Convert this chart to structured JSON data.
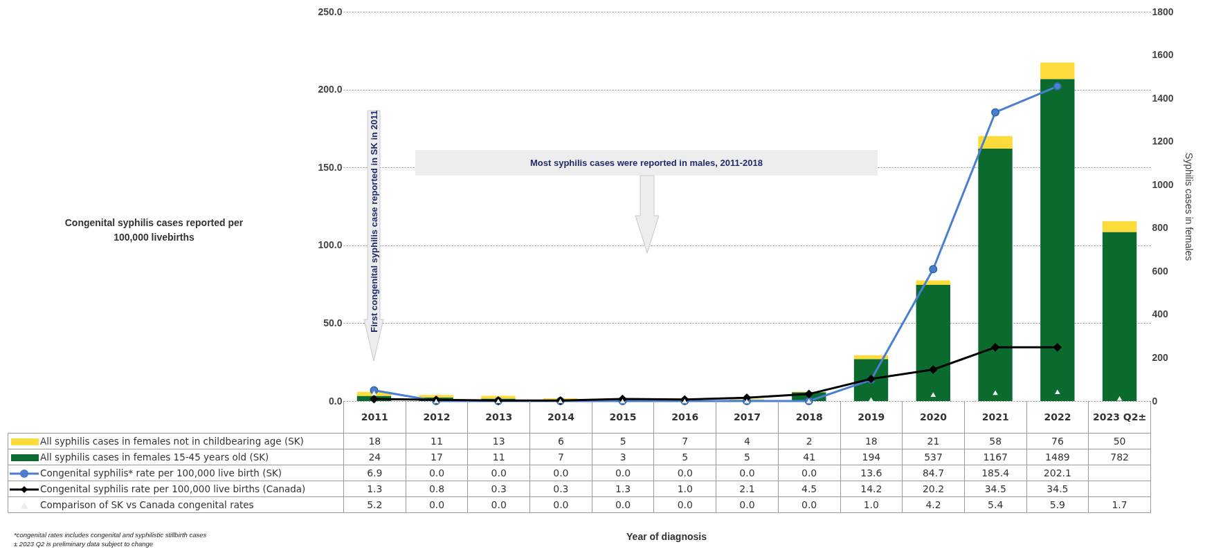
{
  "chart_data": {
    "type": "bar",
    "y2label": "Syphilis cases in females",
    "categories": [
      "2011",
      "2012",
      "2013",
      "2014",
      "2015",
      "2016",
      "2017",
      "2018",
      "2019",
      "2020",
      "2021",
      "2022",
      "2023 Q2±"
    ],
    "stacked": true,
    "data_labels": true,
    "legend": "bottom",
    "grid": "y",
    "ylim": [
      0,
      250
    ],
    "yticks": [
      {
        "value": 0,
        "label": "0.0"
      },
      {
        "value": 50,
        "label": "50.0"
      },
      {
        "value": 100,
        "label": "100.0"
      },
      {
        "value": 150,
        "label": "150.0"
      },
      {
        "value": 200,
        "label": "200.0"
      },
      {
        "value": 250,
        "label": "250.0"
      }
    ],
    "y2lim": [
      0,
      1800
    ],
    "y2ticks": [
      0,
      200,
      400,
      600,
      800,
      1000,
      1200,
      1400,
      1600,
      1800
    ],
    "series": [
      {
        "name": "All syphilis cases in females 15-45 years old (SK)",
        "axis": "y2",
        "color": "#0b6b2f",
        "values": [
          24,
          17,
          11,
          7,
          3,
          5,
          5,
          41,
          194,
          537,
          1167,
          1489,
          782
        ],
        "value_labels": [
          "24",
          "17",
          "11",
          "7",
          "3",
          "5",
          "5",
          "41",
          "194",
          "537",
          "1167",
          "1489",
          "782"
        ]
      },
      {
        "name": "All syphilis cases in females not in childbearing age (SK)",
        "axis": "y2",
        "color": "#fcdc3a",
        "values": [
          18,
          11,
          13,
          6,
          5,
          7,
          4,
          2,
          18,
          21,
          58,
          76,
          50
        ],
        "value_labels": [
          "18",
          "11",
          "13",
          "6",
          "5",
          "7",
          "4",
          "2",
          "18",
          "21",
          "58",
          "76",
          "50"
        ]
      },
      {
        "name": "Congenital syphilis* rate per 100,000 live birth (SK)",
        "type": "line",
        "color": "#4a7ed0",
        "marker": "circle",
        "values": [
          6.9,
          0,
          0,
          0,
          0,
          0,
          0,
          0,
          13.6,
          84.7,
          185.4,
          202.1,
          null
        ],
        "value_labels": [
          "6.9",
          "0.0",
          "0.0",
          "0.0",
          "0.0",
          "0.0",
          "0.0",
          "0.0",
          "13.6",
          "84.7",
          "185.4",
          "202.1",
          null
        ]
      },
      {
        "name": "Congenital syphilis rate per 100,000 live births (Canada)",
        "type": "line",
        "color": "#000000",
        "marker": "diamond",
        "values": [
          1.3,
          0.8,
          0.3,
          0.3,
          1.3,
          1.0,
          2.1,
          4.5,
          14.2,
          20.2,
          34.5,
          34.5,
          null
        ],
        "value_labels": [
          "1.3",
          "0.8",
          "0.3",
          "0.3",
          "1.3",
          "1.0",
          "2.1",
          "4.5",
          "14.2",
          "20.2",
          "34.5",
          "34.5",
          null
        ]
      },
      {
        "name": "Comparison of SK vs Canada congenital rates",
        "type": "scatter",
        "color": "#ececec",
        "marker": "triangle",
        "values": [
          5.2,
          0,
          0,
          0,
          0,
          0,
          0,
          0,
          1.0,
          4.2,
          5.4,
          5.9,
          1.7
        ],
        "value_labels": [
          "5.2",
          "0.0",
          "0.0",
          "0.0",
          "0.0",
          "0.0",
          "0.0",
          "0.0",
          "1.0",
          "4.2",
          "5.4",
          "5.9",
          "1.7"
        ]
      }
    ],
    "annotations": [
      "Most syphilis cases were reported in males, 2011-2018",
      "First congenital syphilis case reported  in SK in 2011",
      "*congenital rates includes congenital and syphilistic stillbirth cases",
      "± 2023 Q2 is preliminary data subject to change",
      "Congenital syphilis cases reported per 100,000 livebirths",
      "Year of diagnosis"
    ]
  }
}
